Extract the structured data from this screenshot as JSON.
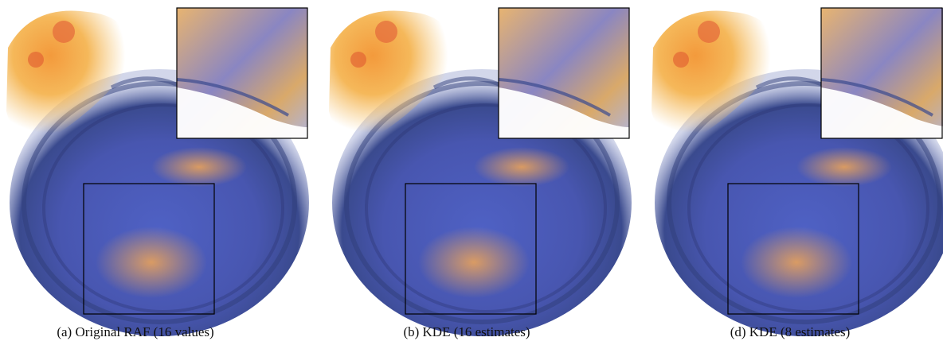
{
  "panels": [
    {
      "caption": "(a) Original RAF (16 values)"
    },
    {
      "caption": "(b) KDE (16 estimates)"
    },
    {
      "caption": "(d) KDE (8 estimates)"
    }
  ]
}
